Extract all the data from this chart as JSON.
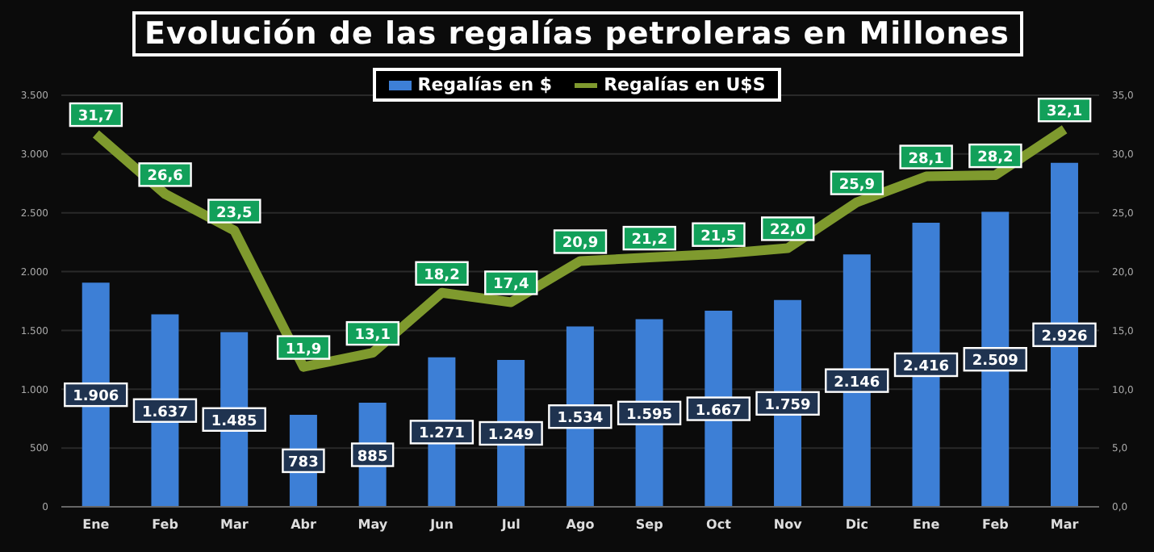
{
  "chart_data": {
    "type": "bar",
    "title": "Evolución de las regalías petroleras en Millones",
    "categories": [
      "Ene",
      "Feb",
      "Mar",
      "Abr",
      "May",
      "Jun",
      "Jul",
      "Ago",
      "Sep",
      "Oct",
      "Nov",
      "Dic",
      "Ene",
      "Feb",
      "Mar"
    ],
    "series": [
      {
        "name": "Regalías en $",
        "color": "#3d7fd6",
        "values": [
          1906,
          1637,
          1485,
          783,
          885,
          1271,
          1249,
          1534,
          1595,
          1667,
          1759,
          2146,
          2416,
          2509,
          2926
        ],
        "value_labels": [
          "1.906",
          "1.637",
          "1.485",
          "783",
          "885",
          "1.271",
          "1.249",
          "1.534",
          "1.595",
          "1.667",
          "1.759",
          "2.146",
          "2.416",
          "2.509",
          "2.926"
        ]
      },
      {
        "name": "Regalías en U$S",
        "type": "line",
        "axis": "y2",
        "color": "#7f9a2e",
        "values": [
          31.7,
          26.6,
          23.5,
          11.9,
          13.1,
          18.2,
          17.4,
          20.9,
          21.2,
          21.5,
          22.0,
          25.9,
          28.1,
          28.2,
          32.1
        ],
        "value_labels": [
          "31,7",
          "26,6",
          "23,5",
          "11,9",
          "13,1",
          "18,2",
          "17,4",
          "20,9",
          "21,2",
          "21,5",
          "22,0",
          "25,9",
          "28,1",
          "28,2",
          "32,1"
        ]
      }
    ],
    "ylim": [
      0,
      3500
    ],
    "yticks": [
      0,
      500,
      {
        "value": 1000,
        "label": "1.000"
      },
      {
        "value": 1500,
        "label": "1.500"
      },
      {
        "value": 2000,
        "label": "2.000"
      },
      {
        "value": 2500,
        "label": "2.500"
      },
      {
        "value": 3000,
        "label": "3.000"
      },
      {
        "value": 3500,
        "label": "3.500"
      }
    ],
    "y2lim": [
      0,
      35
    ],
    "y2ticks": [
      {
        "value": 0,
        "label": "0,0"
      },
      {
        "value": 5,
        "label": "5,0"
      },
      {
        "value": 10,
        "label": "10,0"
      },
      {
        "value": 15,
        "label": "15,0"
      },
      {
        "value": 20,
        "label": "20,0"
      },
      {
        "value": 25,
        "label": "25,0"
      },
      {
        "value": 30,
        "label": "30,0"
      },
      {
        "value": 35,
        "label": "35,0"
      }
    ],
    "grid": "y",
    "legend": "top",
    "marker": "none",
    "line_style": "solid"
  }
}
